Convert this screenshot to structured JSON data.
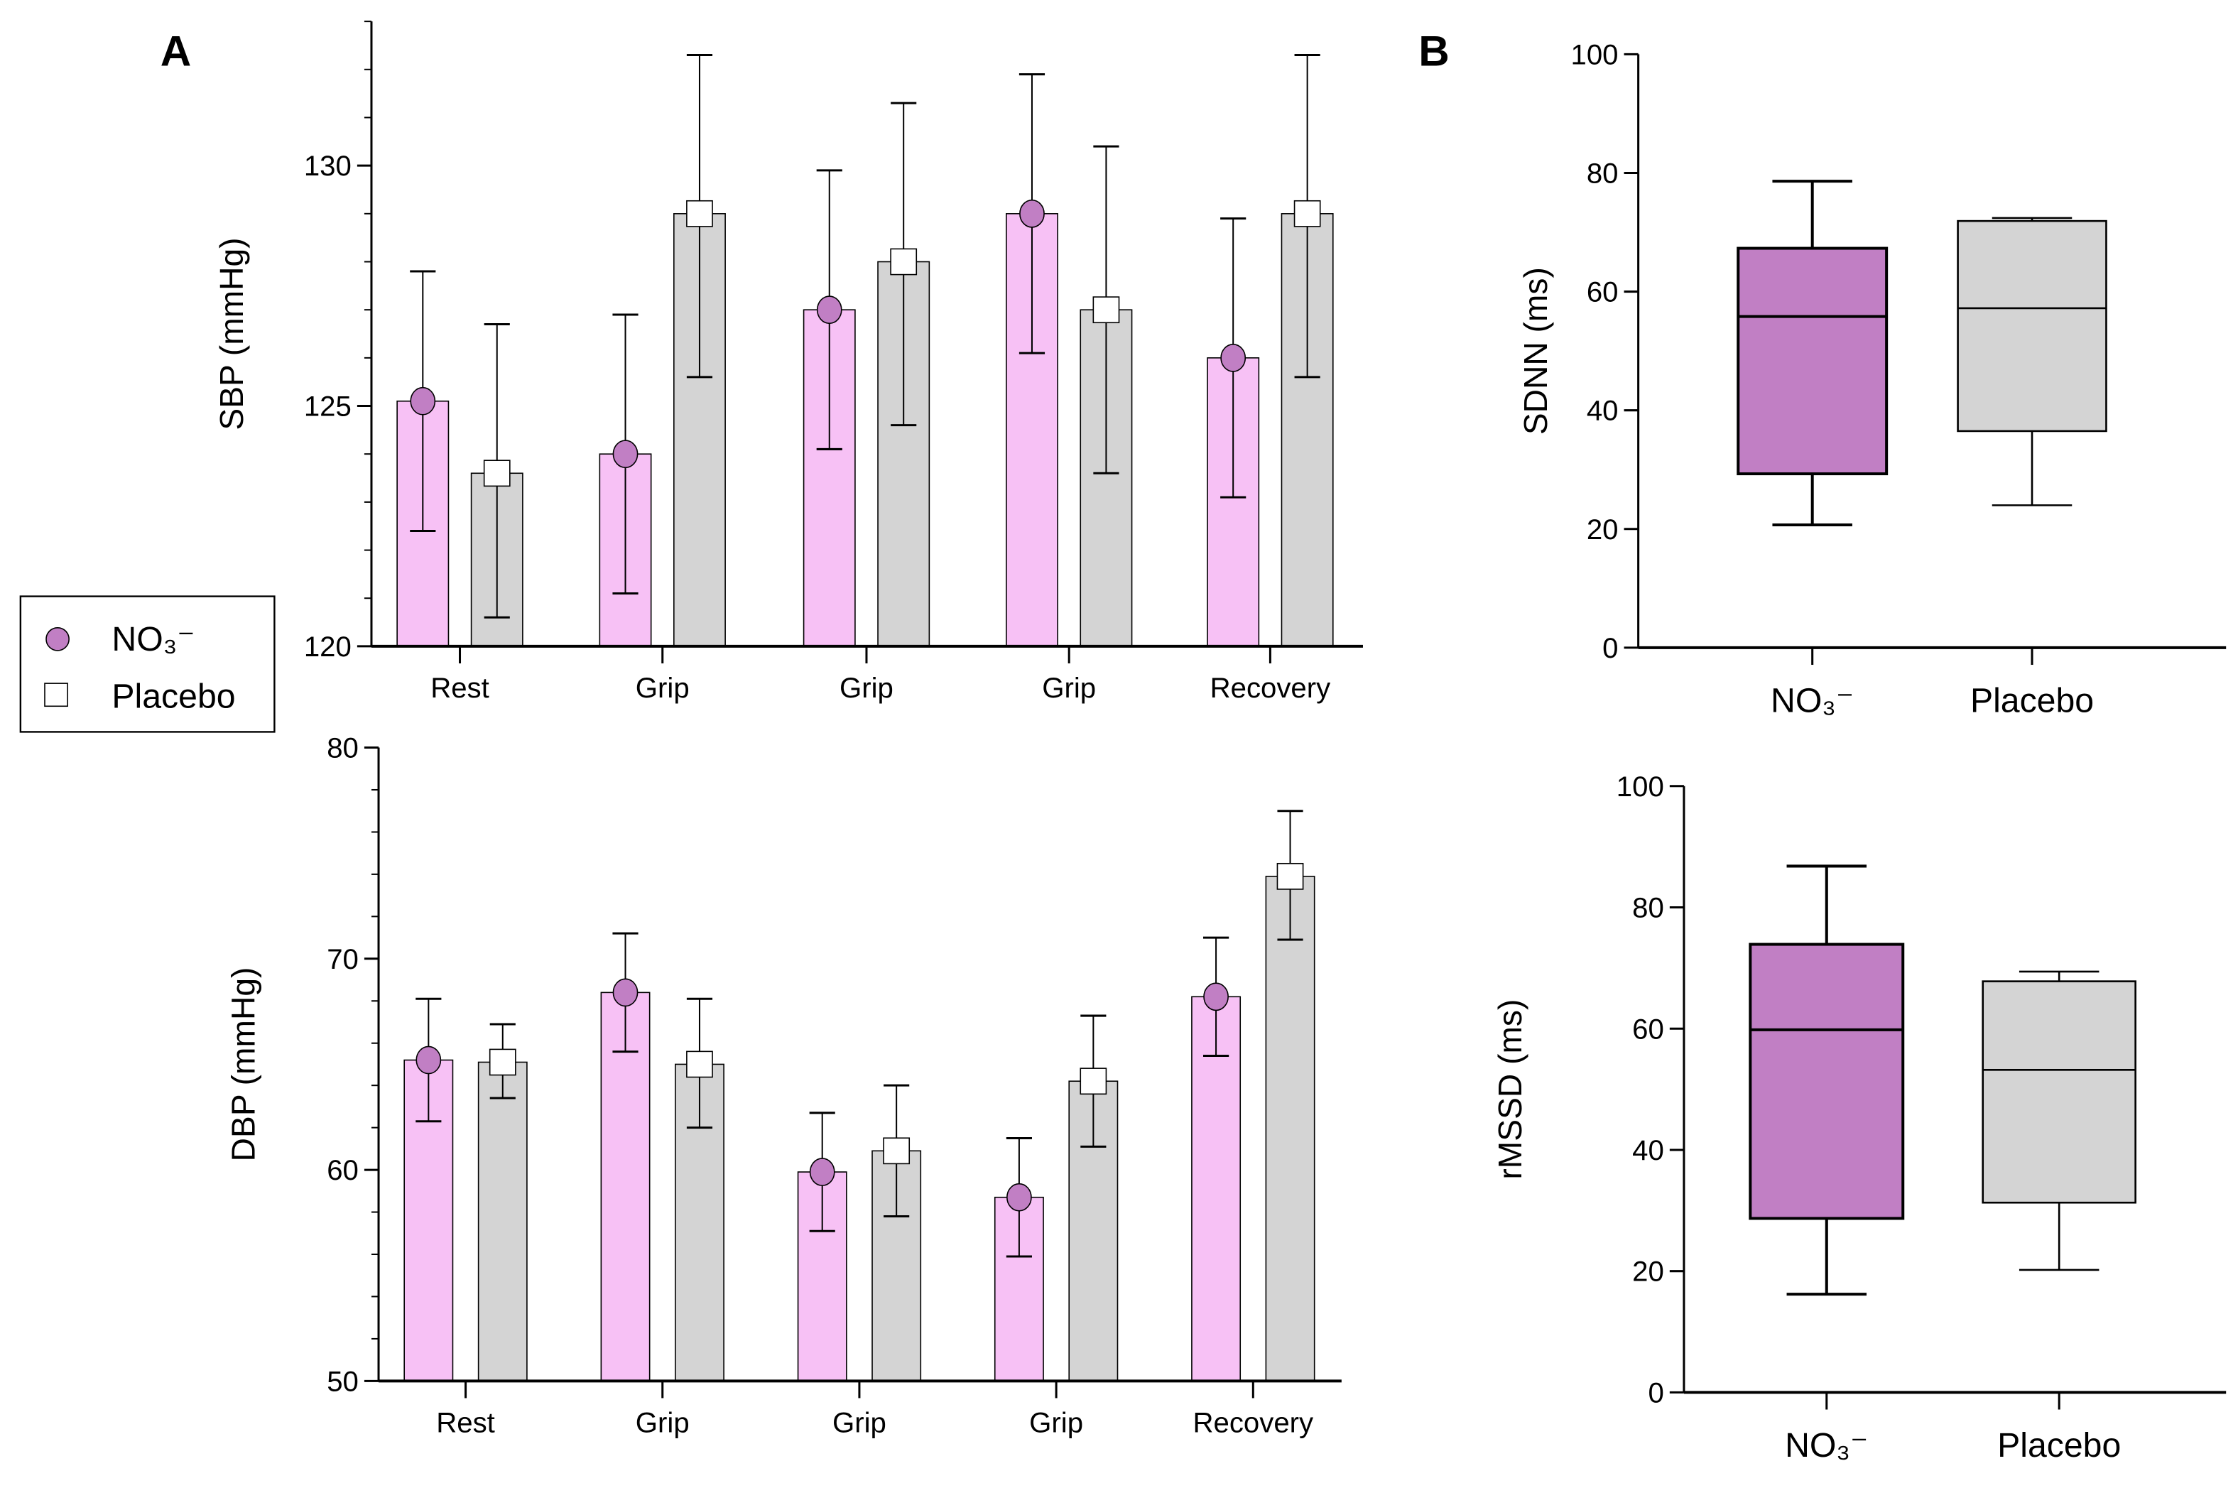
{
  "panels": {
    "a": "A",
    "b": "B"
  },
  "legend": {
    "items": [
      {
        "label": "NO₃⁻",
        "marker": "circle"
      },
      {
        "label": "Placebo",
        "marker": "square"
      }
    ]
  },
  "colors": {
    "no3_bar": "#f7c1f5",
    "no3_marker": "#c17fc4",
    "placebo_bar": "#d4d4d4",
    "placebo_marker": "#ffffff",
    "no3_box": "#c17fc4",
    "placebo_box": "#d4d4d4"
  },
  "chart_data": [
    {
      "id": "sbp",
      "type": "bar",
      "ylabel": "SBP (mmHg)",
      "ylim": [
        120,
        133
      ],
      "yticks": [
        120,
        125,
        130
      ],
      "categories": [
        "Rest",
        "Grip",
        "Grip",
        "Grip",
        "Recovery"
      ],
      "series": [
        {
          "name": "NO3-",
          "values": [
            125.1,
            124.0,
            127.0,
            129.0,
            126.0
          ],
          "err_low": [
            122.4,
            121.1,
            124.1,
            126.1,
            123.1
          ],
          "err_high": [
            127.8,
            126.9,
            129.9,
            131.9,
            128.9
          ]
        },
        {
          "name": "Placebo",
          "values": [
            123.6,
            129.0,
            128.0,
            127.0,
            129.0
          ],
          "err_low": [
            120.6,
            125.6,
            124.6,
            123.6,
            125.6
          ],
          "err_high": [
            126.7,
            132.3,
            131.3,
            130.4,
            132.3
          ]
        }
      ]
    },
    {
      "id": "dbp",
      "type": "bar",
      "ylabel": "DBP (mmHg)",
      "ylim": [
        50,
        80
      ],
      "yticks": [
        50,
        60,
        70,
        80
      ],
      "categories": [
        "Rest",
        "Grip",
        "Grip",
        "Grip",
        "Recovery"
      ],
      "series": [
        {
          "name": "NO3-",
          "values": [
            65.2,
            68.4,
            59.9,
            58.7,
            68.2
          ],
          "err_low": [
            62.3,
            65.6,
            57.1,
            55.9,
            65.4
          ],
          "err_high": [
            68.1,
            71.2,
            62.7,
            61.5,
            71.0
          ]
        },
        {
          "name": "Placebo",
          "values": [
            65.1,
            65.0,
            60.9,
            64.2,
            73.9
          ],
          "err_low": [
            63.4,
            62.0,
            57.8,
            61.1,
            70.9
          ],
          "err_high": [
            66.9,
            68.1,
            64.0,
            67.3,
            77.0
          ]
        }
      ]
    },
    {
      "id": "sdnn",
      "type": "box",
      "ylabel": "SDNN (ms)",
      "ylim": [
        0,
        100
      ],
      "yticks": [
        0,
        20,
        40,
        60,
        80,
        100
      ],
      "categories": [
        "NO₃⁻",
        "Placebo"
      ],
      "boxes": [
        {
          "min": 20.7,
          "q1": 29.3,
          "median": 55.8,
          "q3": 67.3,
          "max": 78.6
        },
        {
          "min": 24.0,
          "q1": 36.5,
          "median": 57.2,
          "q3": 71.9,
          "max": 72.4
        }
      ]
    },
    {
      "id": "rmssd",
      "type": "box",
      "ylabel": "rMSSD (ms)",
      "ylim": [
        0,
        100
      ],
      "yticks": [
        0,
        20,
        40,
        60,
        80,
        100
      ],
      "categories": [
        "NO₃⁻",
        "Placebo"
      ],
      "boxes": [
        {
          "min": 16.2,
          "q1": 28.7,
          "median": 59.8,
          "q3": 73.9,
          "max": 86.8
        },
        {
          "min": 20.2,
          "q1": 31.3,
          "median": 53.2,
          "q3": 67.8,
          "max": 69.4
        }
      ]
    }
  ]
}
